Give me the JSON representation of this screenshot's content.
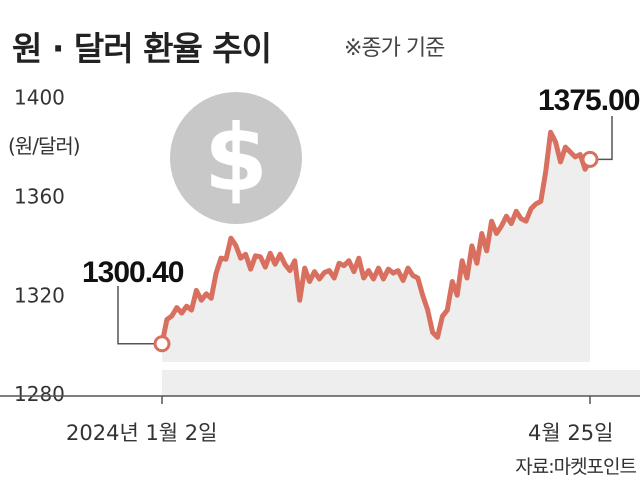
{
  "title": "원 · 달러 환율 추이",
  "note": "※종가 기준",
  "unit": "(원/달러)",
  "source": "자료:마켓포인트",
  "colors": {
    "line": "#d9705f",
    "area": "#eeeeee",
    "icon": "#c8c8c8"
  },
  "icon": "dollar-coin-icon",
  "chart_data": {
    "type": "area",
    "title": "원 · 달러 환율 추이",
    "subtitle": "※종가 기준",
    "ylabel": "(원/달러)",
    "xlabel": "",
    "ylim": [
      1276,
      1412
    ],
    "yticks": [
      1280,
      1320,
      1360,
      1400
    ],
    "grid": false,
    "start_label": "2024년 1월 2일",
    "end_label": "4월 25일",
    "start_value": 1300.4,
    "end_value": 1375.0,
    "start_value_label": "1300.40",
    "end_value_label": "1375.00",
    "values": [
      1300.4,
      1310.2,
      1311.6,
      1315.0,
      1312.8,
      1315.6,
      1314.0,
      1322.0,
      1318.0,
      1320.6,
      1318.8,
      1329.0,
      1335.0,
      1334.6,
      1343.1,
      1340.2,
      1335.0,
      1336.6,
      1330.6,
      1336.0,
      1335.6,
      1331.4,
      1337.0,
      1332.6,
      1336.6,
      1332.5,
      1330.0,
      1334.0,
      1318.0,
      1331.0,
      1325.6,
      1329.6,
      1326.6,
      1329.2,
      1330.0,
      1327.0,
      1333.0,
      1332.0,
      1334.0,
      1329.6,
      1335.0,
      1327.0,
      1330.0,
      1326.6,
      1331.0,
      1326.6,
      1330.6,
      1329.0,
      1330.0,
      1326.0,
      1331.0,
      1328.0,
      1327.0,
      1320.0,
      1314.0,
      1305.0,
      1303.0,
      1311.5,
      1314.0,
      1325.6,
      1320.0,
      1334.0,
      1327.0,
      1340.0,
      1333.0,
      1345.0,
      1338.0,
      1350.0,
      1345.0,
      1348.0,
      1352.0,
      1349.0,
      1354.0,
      1351.0,
      1350.0,
      1355.0,
      1357.0,
      1358.0,
      1370.0,
      1386.0,
      1382.0,
      1374.0,
      1380.0,
      1378.0,
      1376.0,
      1377.0,
      1371.0,
      1375.0
    ]
  }
}
